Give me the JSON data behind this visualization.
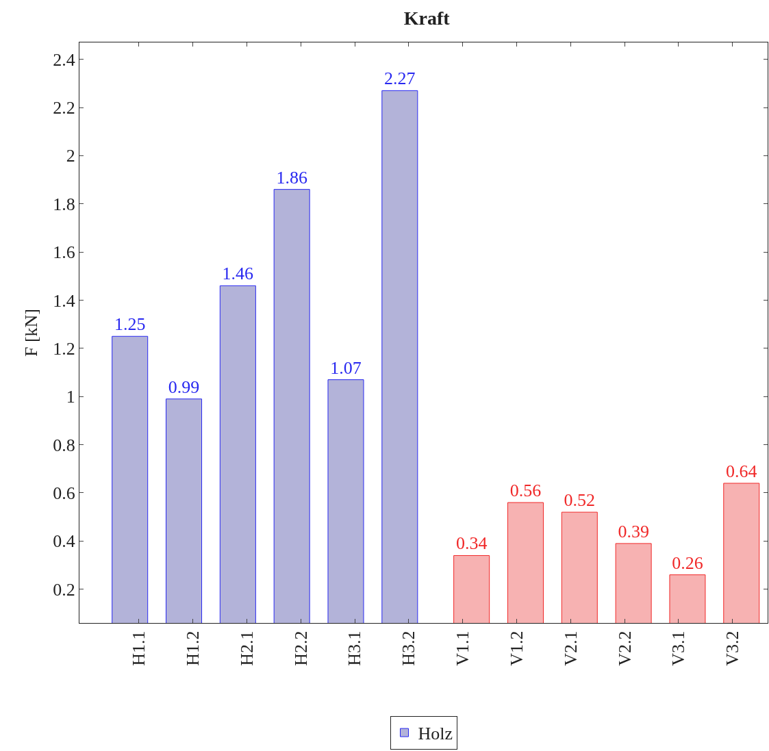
{
  "chart_data": {
    "type": "bar",
    "title": "Kraft",
    "ylabel": "F [kN]",
    "categories": [
      "H1.1",
      "H1.2",
      "H2.1",
      "H2.2",
      "H3.1",
      "H3.2",
      "V1.1",
      "V1.2",
      "V2.1",
      "V2.2",
      "V3.1",
      "V3.2"
    ],
    "series": [
      {
        "name": "Holz",
        "color": "#b3b3d9",
        "values": [
          1.25,
          0.99,
          1.46,
          1.86,
          1.07,
          2.27,
          null,
          null,
          null,
          null,
          null,
          null
        ]
      },
      {
        "color": "#f7b2b2",
        "values": [
          null,
          null,
          null,
          null,
          null,
          null,
          0.34,
          0.56,
          0.52,
          0.39,
          0.26,
          0.64
        ]
      }
    ],
    "ylim": [
      0.06,
      2.47
    ],
    "yticks": [
      0.2,
      0.4,
      0.6,
      0.8,
      1,
      1.2,
      1.4,
      1.6,
      1.8,
      2,
      2.2,
      2.4
    ],
    "data_labels": true,
    "grid": false,
    "legend": "bottom"
  }
}
